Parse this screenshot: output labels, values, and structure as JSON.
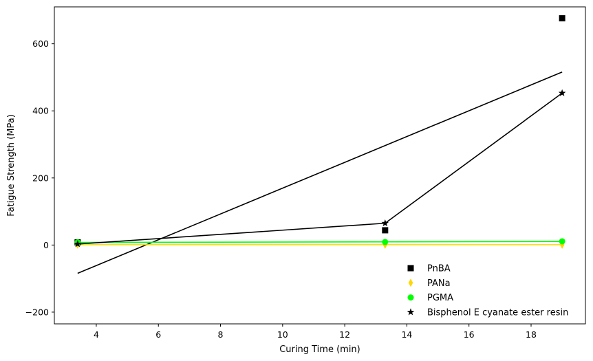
{
  "chart_data": {
    "type": "scatter",
    "xlabel": "Curing Time (min)",
    "ylabel": "Fatigue Strength (MPa)",
    "xlim": [
      2.65,
      19.75
    ],
    "ylim": [
      -235,
      710
    ],
    "xticks": [
      4,
      6,
      8,
      10,
      12,
      14,
      16,
      18
    ],
    "yticks": [
      -200,
      0,
      200,
      400,
      600
    ],
    "legend_position": "lower right",
    "series": [
      {
        "name": "PnBA",
        "marker": "square",
        "color": "#000000",
        "points": [
          [
            3.4,
            8
          ],
          [
            13.3,
            44
          ],
          [
            19.0,
            676
          ]
        ],
        "fit": "linear",
        "fit_color": "#000000"
      },
      {
        "name": "PANa",
        "marker": "thin_diamond",
        "color": "#ffd700",
        "points": [
          [
            3.4,
            1
          ],
          [
            13.3,
            1
          ],
          [
            19.0,
            1
          ]
        ],
        "fit": "linear",
        "fit_color": "#ffd700"
      },
      {
        "name": "PGMA",
        "marker": "circle",
        "color": "#00ff00",
        "points": [
          [
            3.4,
            8
          ],
          [
            13.3,
            9
          ],
          [
            19.0,
            11
          ]
        ],
        "fit": "linear",
        "fit_color": "#00ff00"
      },
      {
        "name": "Bisphenol E cyanate ester resin",
        "marker": "star",
        "color": "#000000",
        "points": [
          [
            3.4,
            3
          ],
          [
            13.3,
            65
          ],
          [
            19.0,
            453
          ]
        ],
        "connect": true,
        "line_color": "#000000"
      }
    ]
  }
}
